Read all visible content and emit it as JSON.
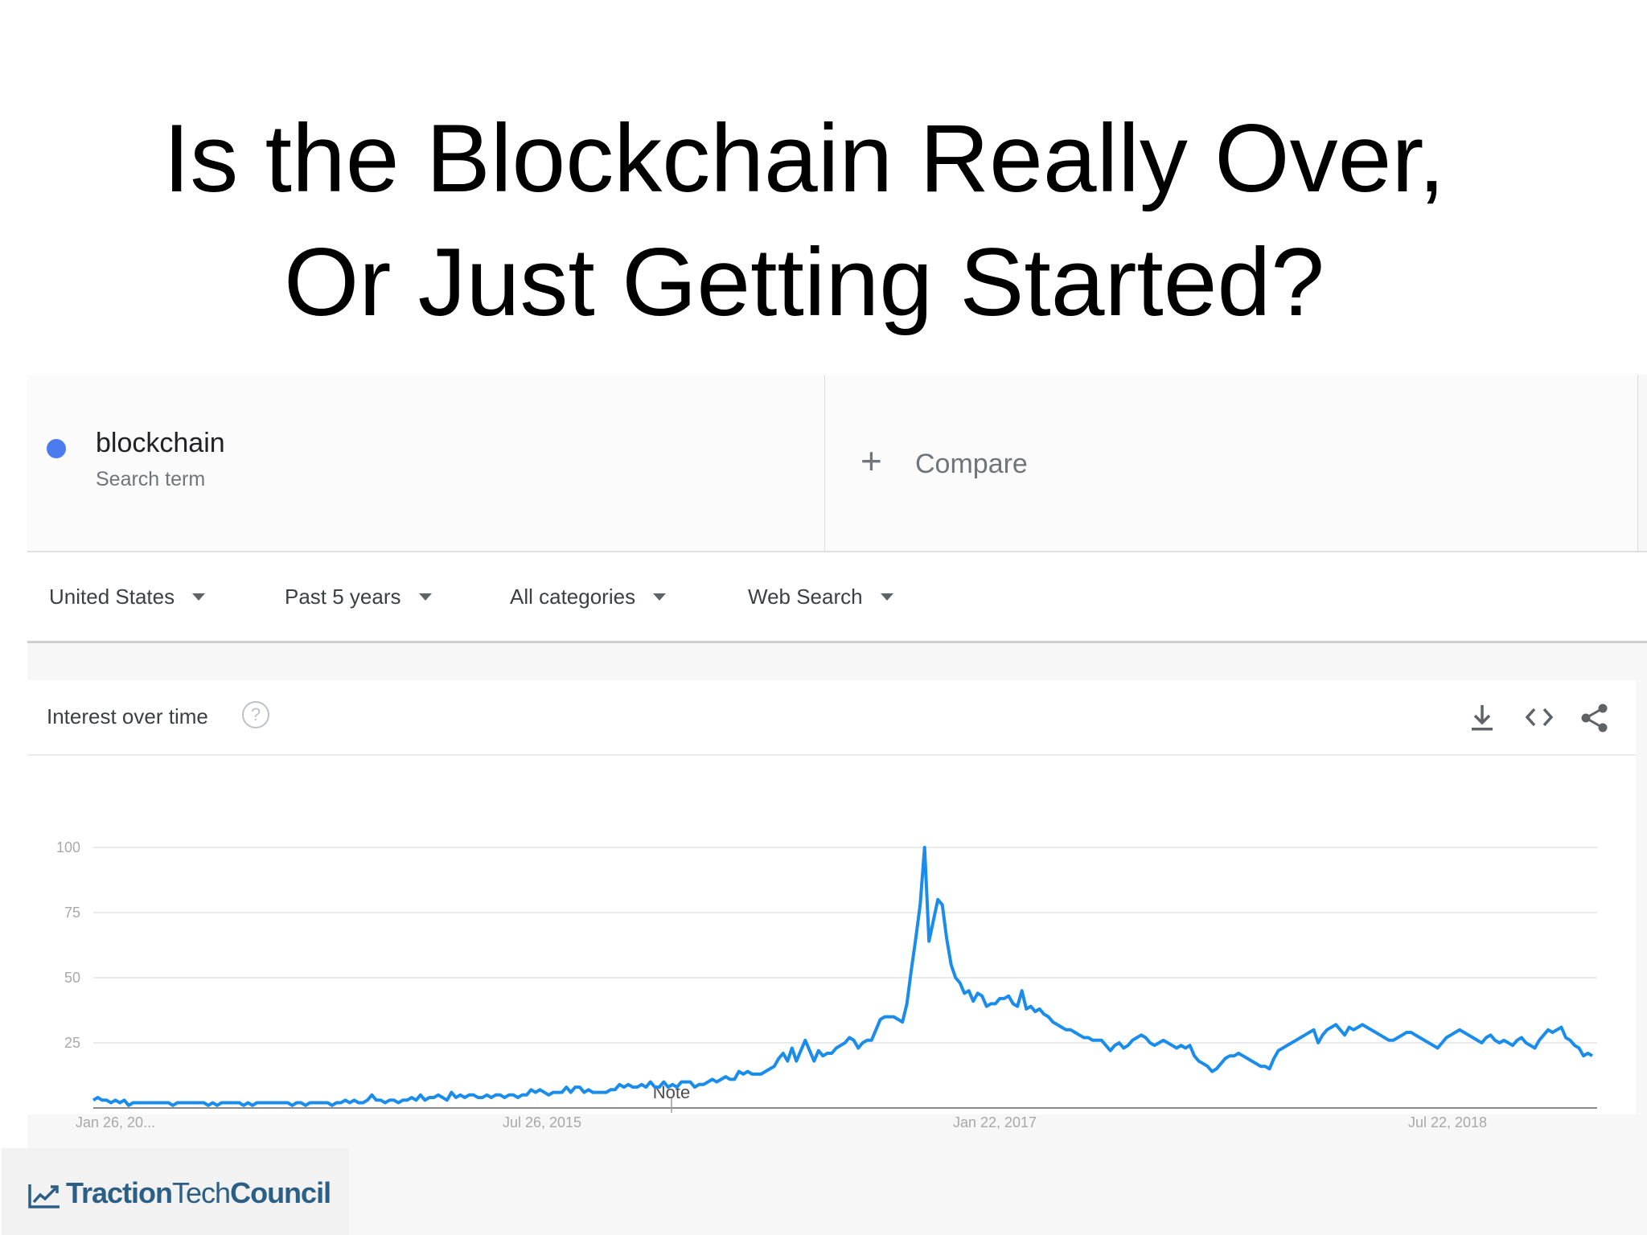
{
  "slide": {
    "title_line1": "Is the Blockchain Really Over,",
    "title_line2": "Or Just Getting Started?"
  },
  "search_term": {
    "name": "blockchain",
    "subtitle": "Search term",
    "dot_color": "#4a7cf0"
  },
  "compare": {
    "icon": "plus-icon",
    "label": "Compare"
  },
  "filters": [
    {
      "label": "United States"
    },
    {
      "label": "Past 5 years"
    },
    {
      "label": "All categories"
    },
    {
      "label": "Web Search"
    }
  ],
  "interest_over_time": {
    "title": "Interest over time",
    "help_icon": "help-icon",
    "actions": [
      "download-icon",
      "embed-icon",
      "share-icon"
    ]
  },
  "chart_data": {
    "type": "line",
    "title": "",
    "xlabel": "",
    "ylabel": "",
    "ylim": [
      0,
      100
    ],
    "yticks": [
      25,
      50,
      75,
      100
    ],
    "xtick_labels": [
      "Jan 26, 20...",
      "Jul 26, 2015",
      "Jan 22, 2017",
      "Jul 22, 2018"
    ],
    "annotation": "Note",
    "grid": true,
    "line_color": "#1a8ceb",
    "series": [
      {
        "values": [
          3,
          4,
          3,
          3,
          2,
          3,
          2,
          3,
          1,
          2,
          2,
          2,
          2,
          2,
          2,
          2,
          2,
          2,
          1,
          2,
          2,
          2,
          2,
          2,
          2,
          2,
          1,
          2,
          1,
          2,
          2,
          2,
          2,
          2,
          1,
          2,
          1,
          2,
          2,
          2,
          2,
          2,
          2,
          2,
          2,
          1,
          2,
          2,
          1,
          2,
          2,
          2,
          2,
          2,
          1,
          2,
          2,
          3,
          2,
          3,
          2,
          2,
          3,
          5,
          3,
          3,
          2,
          3,
          3,
          2,
          3,
          3,
          4,
          3,
          5,
          3,
          4,
          4,
          5,
          4,
          3,
          6,
          4,
          5,
          4,
          5,
          5,
          4,
          4,
          5,
          4,
          5,
          5,
          4,
          5,
          5,
          4,
          5,
          5,
          7,
          6,
          7,
          6,
          5,
          6,
          6,
          6,
          8,
          6,
          8,
          8,
          6,
          7,
          6,
          6,
          6,
          6,
          7,
          7,
          9,
          8,
          9,
          8,
          8,
          9,
          8,
          10,
          8,
          8,
          10,
          8,
          9,
          8,
          10,
          10,
          10,
          8,
          9,
          9,
          10,
          11,
          10,
          11,
          12,
          11,
          11,
          14,
          13,
          14,
          13,
          13,
          13,
          14,
          15,
          16,
          19,
          21,
          18,
          23,
          18,
          22,
          26,
          22,
          18,
          22,
          20,
          21,
          21,
          23,
          24,
          25,
          27,
          26,
          23,
          25,
          26,
          26,
          30,
          34,
          35,
          35,
          35,
          34,
          33,
          40,
          53,
          65,
          78,
          100,
          64,
          72,
          80,
          78,
          65,
          55,
          50,
          48,
          44,
          45,
          41,
          44,
          43,
          39,
          40,
          40,
          42,
          42,
          43,
          40,
          39,
          45,
          38,
          39,
          37,
          38,
          36,
          35,
          33,
          32,
          31,
          30,
          30,
          29,
          28,
          27,
          27,
          26,
          26,
          26,
          24,
          22,
          24,
          25,
          23,
          24,
          26,
          27,
          28,
          27,
          25,
          24,
          25,
          26,
          25,
          24,
          23,
          24,
          23,
          24,
          20,
          18,
          17,
          16,
          14,
          15,
          17,
          19,
          20,
          20,
          21,
          20,
          19,
          18,
          17,
          16,
          16,
          15,
          19,
          22,
          23,
          24,
          25,
          26,
          27,
          28,
          29,
          30,
          25,
          28,
          30,
          31,
          32,
          30,
          28,
          31,
          30,
          31,
          32,
          31,
          30,
          29,
          28,
          27,
          26,
          26,
          27,
          28,
          29,
          29,
          28,
          27,
          26,
          25,
          24,
          23,
          25,
          27,
          28,
          29,
          30,
          29,
          28,
          27,
          26,
          25,
          27,
          28,
          26,
          25,
          26,
          25,
          24,
          26,
          27,
          25,
          24,
          23,
          26,
          28,
          30,
          29,
          30,
          31,
          27,
          26,
          24,
          23,
          20,
          21,
          20
        ]
      }
    ]
  }
}
